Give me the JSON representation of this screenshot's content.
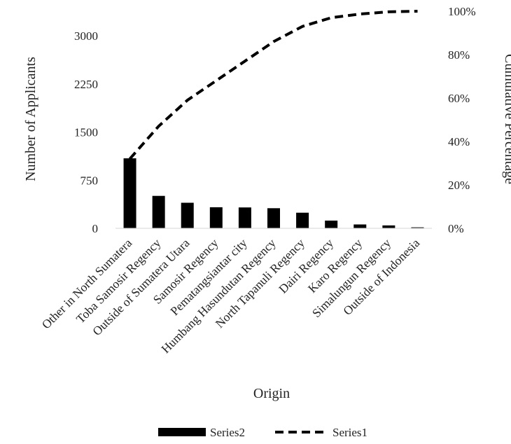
{
  "chart_data": {
    "type": "bar",
    "categories": [
      "Other in North Sumatera",
      "Toba Samosir Regency",
      "Outside of Sumatera Utara",
      "Samosir Regency",
      "Pematangsiantar city",
      "Humbang Hasundutan Regency",
      "North Tapanuli Regency",
      "Dairi Regency",
      "Karo Regency",
      "Simalungun Regency",
      "Outside of Indonesia"
    ],
    "series": [
      {
        "name": "Series2",
        "type": "bar",
        "axis": "left",
        "color": "#000000",
        "values": [
          1090,
          505,
          398,
          328,
          325,
          313,
          243,
          120,
          60,
          45,
          15
        ]
      },
      {
        "name": "Series1",
        "type": "line",
        "axis": "right",
        "style": "dashed",
        "color": "#000000",
        "values": [
          32,
          47,
          59,
          68,
          77,
          86,
          93,
          97,
          98.7,
          99.7,
          100
        ]
      }
    ],
    "xlabel": "Origin",
    "ylabel": "Number of Applicants",
    "y2label": "Cumulative Percentage",
    "ylim": [
      0,
      3000
    ],
    "yticks": [
      "0",
      "750",
      "1500",
      "2250",
      "3000"
    ],
    "y2lim": [
      0,
      100
    ],
    "y2ticks": [
      "0%",
      "20%",
      "40%",
      "60%",
      "80%",
      "100%"
    ],
    "grid": false,
    "legend": "bottom"
  }
}
